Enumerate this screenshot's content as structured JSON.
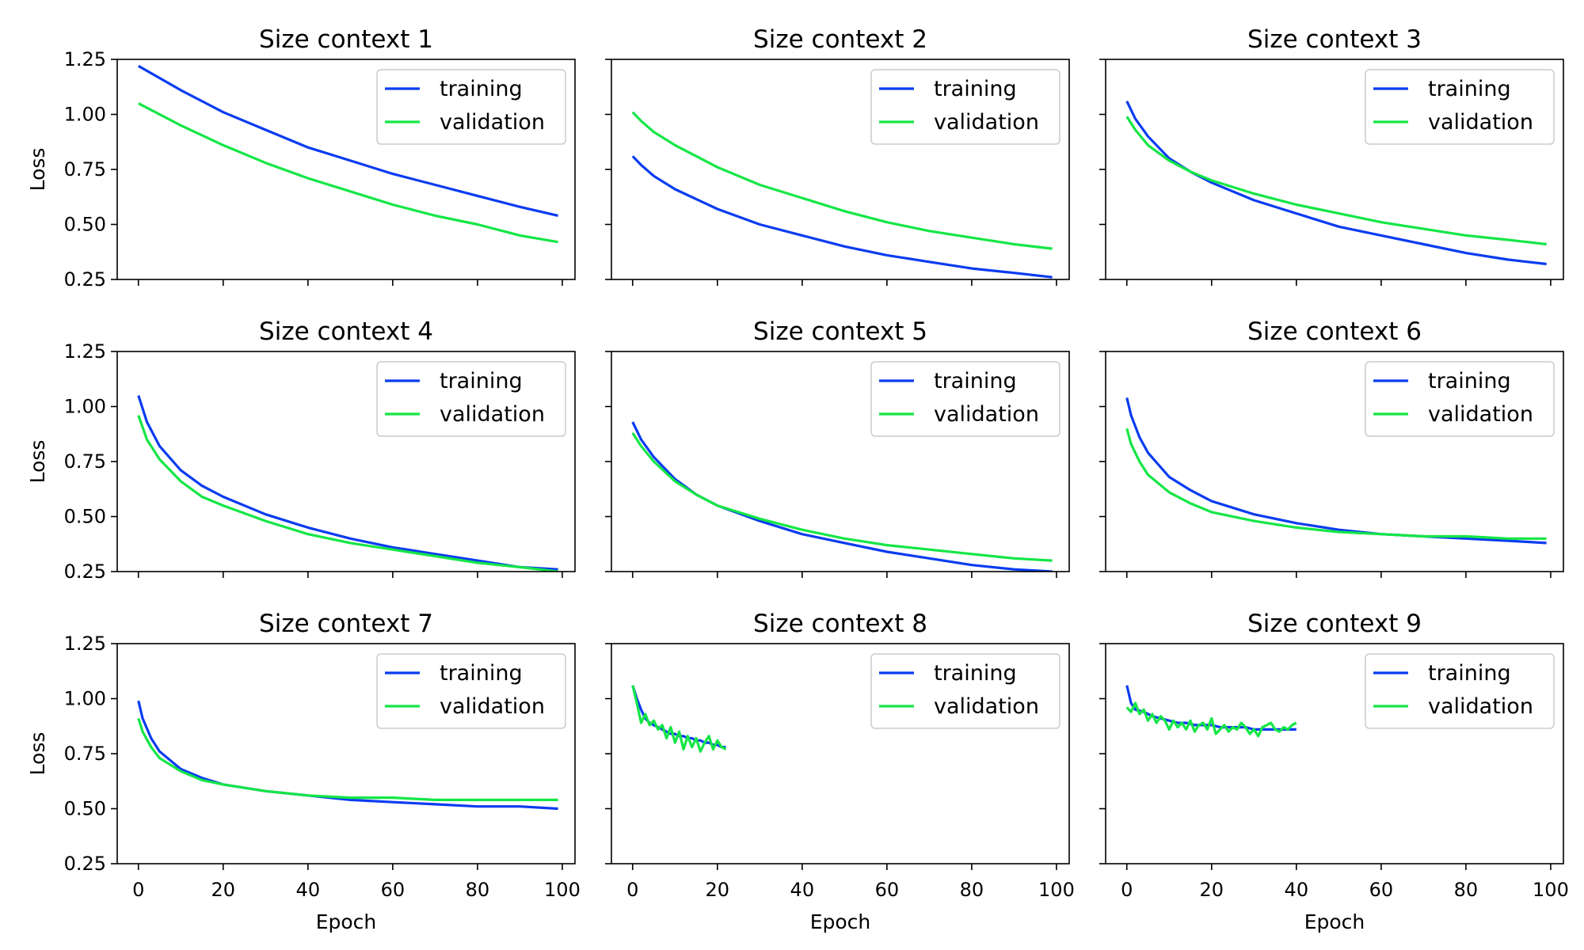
{
  "figure": {
    "xlabel": "Epoch",
    "ylabel": "Loss",
    "xlim": [
      -5,
      103
    ],
    "ylim": [
      0.25,
      1.25
    ],
    "xticks": [
      0,
      20,
      40,
      60,
      80,
      100
    ],
    "yticks": [
      0.25,
      0.5,
      0.75,
      1.0,
      1.25
    ],
    "ytick_labels": [
      "0.25",
      "0.50",
      "0.75",
      "1.00",
      "1.25"
    ],
    "legend_placement": "upper-right",
    "grid": false
  },
  "colors": {
    "training": "#0a3cf0",
    "validation": "#14e646",
    "axes": "#000000"
  },
  "chart_data": [
    {
      "type": "line",
      "title": "Size context 1",
      "xlabel": "",
      "ylabel": "Loss",
      "series": [
        {
          "name": "training",
          "x": [
            0,
            10,
            20,
            30,
            40,
            50,
            60,
            70,
            80,
            90,
            99
          ],
          "values": [
            1.22,
            1.11,
            1.01,
            0.93,
            0.85,
            0.79,
            0.73,
            0.68,
            0.63,
            0.58,
            0.54
          ]
        },
        {
          "name": "validation",
          "x": [
            0,
            10,
            20,
            30,
            40,
            50,
            60,
            70,
            80,
            90,
            99
          ],
          "values": [
            1.05,
            0.95,
            0.86,
            0.78,
            0.71,
            0.65,
            0.59,
            0.54,
            0.5,
            0.45,
            0.42
          ]
        }
      ]
    },
    {
      "type": "line",
      "title": "Size context 2",
      "xlabel": "",
      "ylabel": "",
      "series": [
        {
          "name": "training",
          "x": [
            0,
            2,
            5,
            10,
            20,
            30,
            40,
            50,
            60,
            70,
            80,
            90,
            99
          ],
          "values": [
            0.81,
            0.77,
            0.72,
            0.66,
            0.57,
            0.5,
            0.45,
            0.4,
            0.36,
            0.33,
            0.3,
            0.28,
            0.26
          ]
        },
        {
          "name": "validation",
          "x": [
            0,
            2,
            5,
            10,
            20,
            30,
            40,
            50,
            60,
            70,
            80,
            90,
            99
          ],
          "values": [
            1.01,
            0.97,
            0.92,
            0.86,
            0.76,
            0.68,
            0.62,
            0.56,
            0.51,
            0.47,
            0.44,
            0.41,
            0.39
          ]
        }
      ]
    },
    {
      "type": "line",
      "title": "Size context 3",
      "xlabel": "",
      "ylabel": "",
      "series": [
        {
          "name": "training",
          "x": [
            0,
            2,
            5,
            10,
            15,
            20,
            30,
            40,
            50,
            60,
            70,
            80,
            90,
            99
          ],
          "values": [
            1.06,
            0.98,
            0.9,
            0.8,
            0.74,
            0.69,
            0.61,
            0.55,
            0.49,
            0.45,
            0.41,
            0.37,
            0.34,
            0.32
          ]
        },
        {
          "name": "validation",
          "x": [
            0,
            2,
            5,
            10,
            15,
            20,
            30,
            40,
            50,
            60,
            70,
            80,
            90,
            99
          ],
          "values": [
            0.99,
            0.93,
            0.86,
            0.79,
            0.74,
            0.7,
            0.64,
            0.59,
            0.55,
            0.51,
            0.48,
            0.45,
            0.43,
            0.41
          ]
        }
      ]
    },
    {
      "type": "line",
      "title": "Size context 4",
      "xlabel": "",
      "ylabel": "Loss",
      "series": [
        {
          "name": "training",
          "x": [
            0,
            2,
            5,
            10,
            15,
            20,
            30,
            40,
            50,
            60,
            70,
            80,
            90,
            99
          ],
          "values": [
            1.05,
            0.93,
            0.82,
            0.71,
            0.64,
            0.59,
            0.51,
            0.45,
            0.4,
            0.36,
            0.33,
            0.3,
            0.27,
            0.26
          ]
        },
        {
          "name": "validation",
          "x": [
            0,
            2,
            5,
            10,
            15,
            20,
            30,
            40,
            50,
            60,
            70,
            80,
            90,
            99
          ],
          "values": [
            0.96,
            0.85,
            0.76,
            0.66,
            0.59,
            0.55,
            0.48,
            0.42,
            0.38,
            0.35,
            0.32,
            0.29,
            0.27,
            0.25
          ]
        }
      ]
    },
    {
      "type": "line",
      "title": "Size context 5",
      "xlabel": "",
      "ylabel": "",
      "series": [
        {
          "name": "training",
          "x": [
            0,
            2,
            5,
            10,
            15,
            20,
            30,
            40,
            50,
            60,
            70,
            80,
            90,
            99
          ],
          "values": [
            0.93,
            0.85,
            0.77,
            0.67,
            0.6,
            0.55,
            0.48,
            0.42,
            0.38,
            0.34,
            0.31,
            0.28,
            0.26,
            0.25
          ]
        },
        {
          "name": "validation",
          "x": [
            0,
            2,
            5,
            10,
            15,
            20,
            30,
            40,
            50,
            60,
            70,
            80,
            90,
            99
          ],
          "values": [
            0.88,
            0.82,
            0.75,
            0.66,
            0.6,
            0.55,
            0.49,
            0.44,
            0.4,
            0.37,
            0.35,
            0.33,
            0.31,
            0.3
          ]
        }
      ]
    },
    {
      "type": "line",
      "title": "Size context 6",
      "xlabel": "",
      "ylabel": "",
      "series": [
        {
          "name": "training",
          "x": [
            0,
            1,
            3,
            5,
            10,
            15,
            20,
            30,
            40,
            50,
            60,
            70,
            80,
            90,
            99
          ],
          "values": [
            1.04,
            0.96,
            0.86,
            0.79,
            0.68,
            0.62,
            0.57,
            0.51,
            0.47,
            0.44,
            0.42,
            0.41,
            0.4,
            0.39,
            0.38
          ]
        },
        {
          "name": "validation",
          "x": [
            0,
            1,
            3,
            5,
            10,
            15,
            20,
            30,
            40,
            50,
            60,
            70,
            80,
            90,
            99
          ],
          "values": [
            0.9,
            0.83,
            0.75,
            0.69,
            0.61,
            0.56,
            0.52,
            0.48,
            0.45,
            0.43,
            0.42,
            0.41,
            0.41,
            0.4,
            0.4
          ]
        }
      ]
    },
    {
      "type": "line",
      "title": "Size context 7",
      "xlabel": "Epoch",
      "ylabel": "Loss",
      "series": [
        {
          "name": "training",
          "x": [
            0,
            1,
            3,
            5,
            10,
            15,
            20,
            30,
            40,
            50,
            60,
            70,
            80,
            90,
            99
          ],
          "values": [
            0.99,
            0.91,
            0.82,
            0.76,
            0.68,
            0.64,
            0.61,
            0.58,
            0.56,
            0.54,
            0.53,
            0.52,
            0.51,
            0.51,
            0.5
          ]
        },
        {
          "name": "validation",
          "x": [
            0,
            1,
            3,
            5,
            10,
            15,
            20,
            30,
            40,
            50,
            60,
            70,
            80,
            90,
            99
          ],
          "values": [
            0.91,
            0.85,
            0.78,
            0.73,
            0.67,
            0.63,
            0.61,
            0.58,
            0.56,
            0.55,
            0.55,
            0.54,
            0.54,
            0.54,
            0.54
          ]
        }
      ]
    },
    {
      "type": "line",
      "title": "Size context 8",
      "xlabel": "Epoch",
      "ylabel": "",
      "series": [
        {
          "name": "training",
          "x": [
            0,
            1,
            2,
            3,
            4,
            5,
            6,
            7,
            8,
            9,
            10,
            11,
            12,
            13,
            14,
            15,
            16,
            17,
            18,
            19,
            20,
            21,
            22
          ],
          "values": [
            1.06,
            1.0,
            0.95,
            0.91,
            0.89,
            0.88,
            0.87,
            0.86,
            0.85,
            0.84,
            0.84,
            0.83,
            0.83,
            0.82,
            0.82,
            0.81,
            0.81,
            0.8,
            0.8,
            0.79,
            0.79,
            0.78,
            0.78
          ]
        },
        {
          "name": "validation",
          "x": [
            0,
            1,
            2,
            3,
            4,
            5,
            6,
            7,
            8,
            9,
            10,
            11,
            12,
            13,
            14,
            15,
            16,
            17,
            18,
            19,
            20,
            21,
            22
          ],
          "values": [
            1.06,
            0.98,
            0.89,
            0.93,
            0.88,
            0.9,
            0.86,
            0.88,
            0.82,
            0.87,
            0.8,
            0.85,
            0.77,
            0.83,
            0.78,
            0.82,
            0.76,
            0.8,
            0.83,
            0.77,
            0.81,
            0.78,
            0.77
          ]
        }
      ]
    },
    {
      "type": "line",
      "title": "Size context 9",
      "xlabel": "Epoch",
      "ylabel": "",
      "series": [
        {
          "name": "training",
          "x": [
            0,
            1,
            2,
            4,
            6,
            8,
            10,
            12,
            14,
            16,
            18,
            20,
            22,
            24,
            26,
            28,
            30,
            32,
            34,
            36,
            38,
            40
          ],
          "values": [
            1.06,
            0.98,
            0.95,
            0.94,
            0.92,
            0.91,
            0.9,
            0.89,
            0.89,
            0.88,
            0.88,
            0.88,
            0.87,
            0.87,
            0.87,
            0.87,
            0.86,
            0.86,
            0.86,
            0.86,
            0.86,
            0.86
          ]
        },
        {
          "name": "validation",
          "x": [
            0,
            1,
            2,
            3,
            4,
            5,
            6,
            7,
            8,
            9,
            10,
            11,
            12,
            13,
            14,
            15,
            16,
            17,
            18,
            19,
            20,
            21,
            22,
            23,
            24,
            25,
            26,
            27,
            28,
            29,
            30,
            31,
            32,
            33,
            34,
            35,
            36,
            37,
            38,
            39,
            40
          ],
          "values": [
            0.96,
            0.94,
            0.98,
            0.93,
            0.95,
            0.9,
            0.93,
            0.89,
            0.92,
            0.9,
            0.86,
            0.9,
            0.87,
            0.89,
            0.86,
            0.9,
            0.85,
            0.88,
            0.89,
            0.86,
            0.91,
            0.84,
            0.86,
            0.88,
            0.85,
            0.87,
            0.86,
            0.89,
            0.87,
            0.84,
            0.86,
            0.83,
            0.87,
            0.88,
            0.89,
            0.86,
            0.85,
            0.87,
            0.86,
            0.88,
            0.89
          ]
        }
      ]
    }
  ]
}
